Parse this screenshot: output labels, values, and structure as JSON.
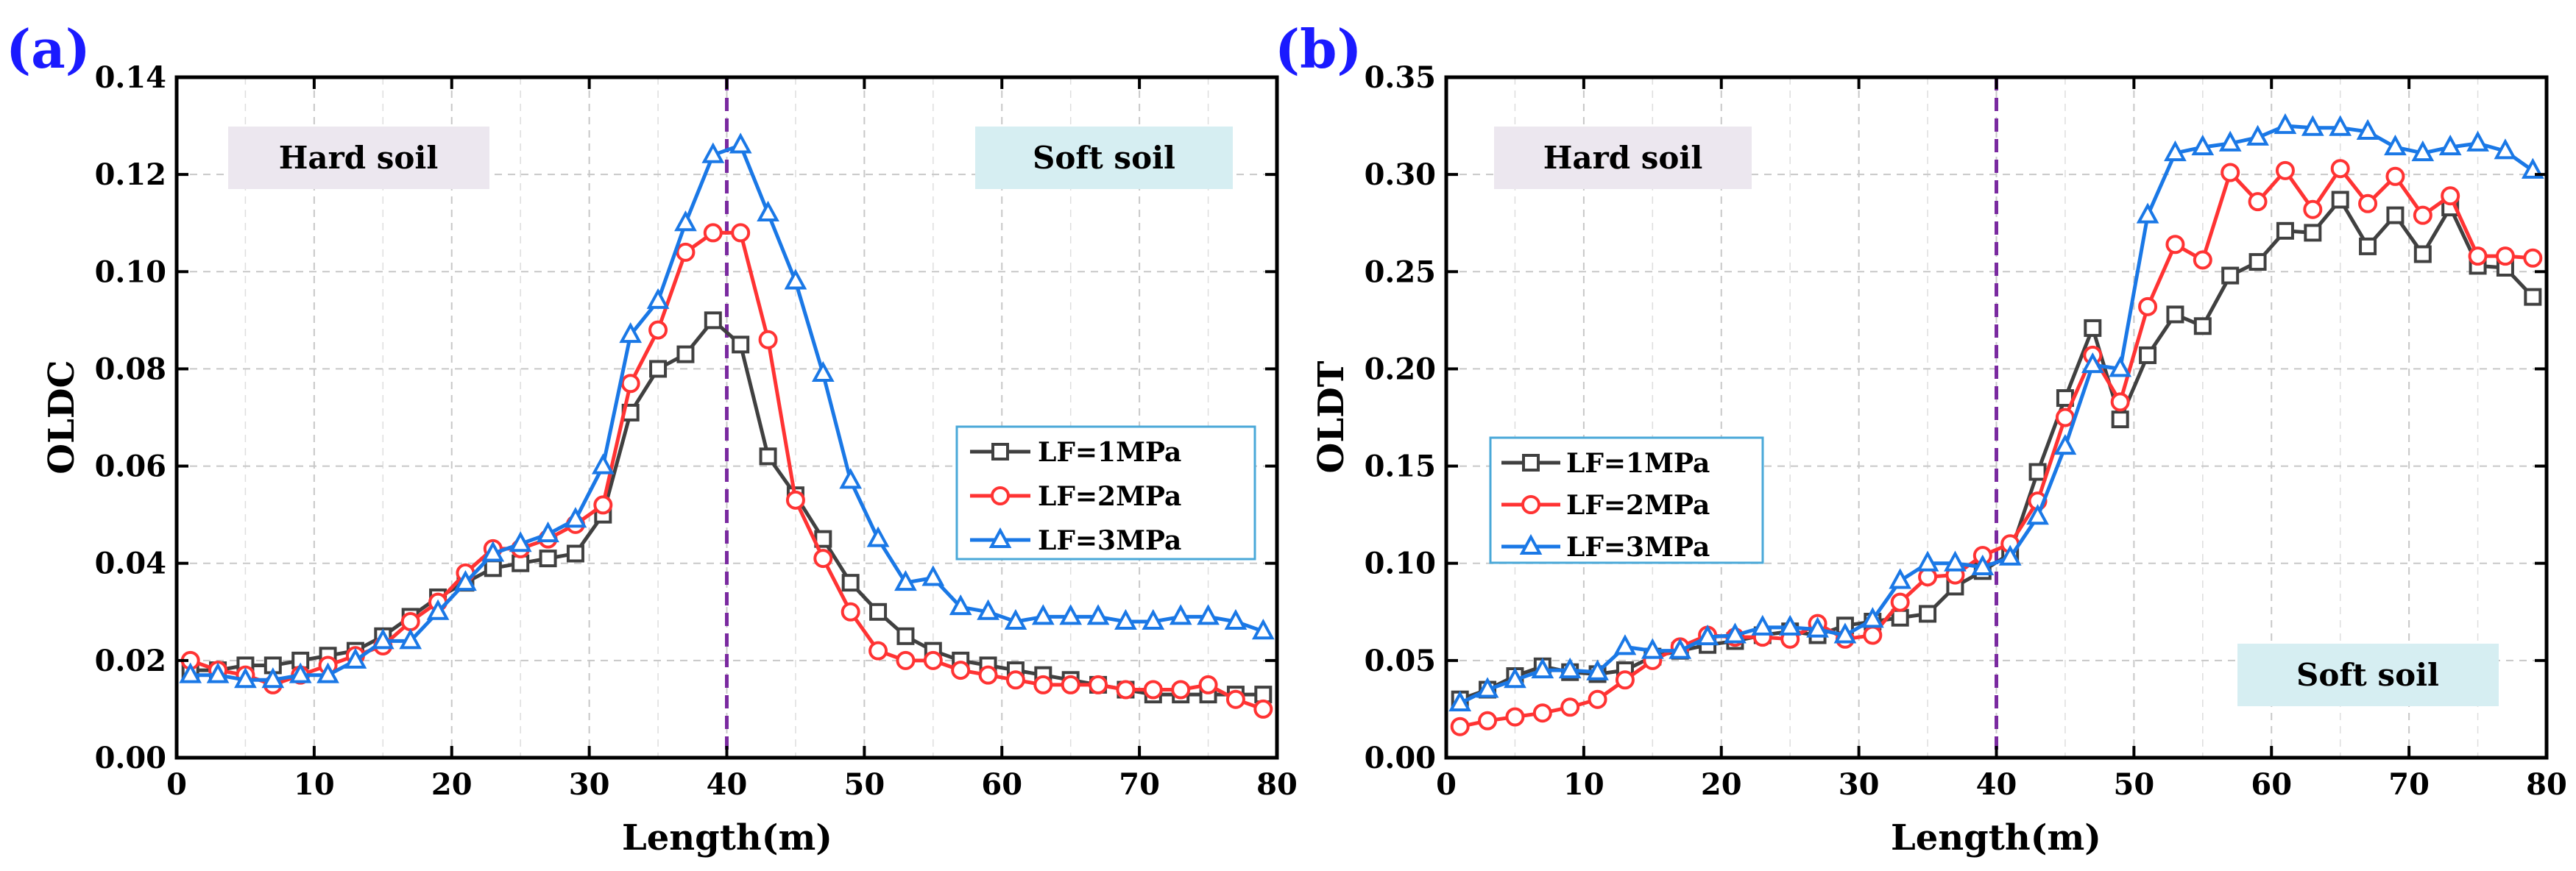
{
  "chart_data": [
    {
      "type": "line",
      "panel_label": "(a)",
      "xlabel": "Length(m)",
      "ylabel": "OLDC",
      "xlim": [
        0,
        80
      ],
      "ylim": [
        0,
        0.14
      ],
      "xticks": [
        "0",
        "10",
        "20",
        "30",
        "40",
        "50",
        "60",
        "70",
        "80"
      ],
      "yticks": [
        "0.00",
        "0.02",
        "0.04",
        "0.06",
        "0.08",
        "0.10",
        "0.12",
        "0.14"
      ],
      "grid": true,
      "vline_x": 40,
      "legend_position": "right",
      "x": [
        1,
        3,
        5,
        7,
        9,
        11,
        13,
        15,
        17,
        19,
        21,
        23,
        25,
        27,
        29,
        31,
        33,
        35,
        37,
        39,
        41,
        43,
        45,
        47,
        49,
        51,
        53,
        55,
        57,
        59,
        61,
        63,
        65,
        67,
        69,
        71,
        73,
        75,
        77,
        79
      ],
      "series": [
        {
          "name": "LF=1MPa",
          "color": "#404040",
          "marker": "square",
          "values": [
            0.018,
            0.018,
            0.019,
            0.019,
            0.02,
            0.021,
            0.022,
            0.025,
            0.029,
            0.033,
            0.036,
            0.039,
            0.04,
            0.041,
            0.042,
            0.05,
            0.071,
            0.08,
            0.083,
            0.09,
            0.085,
            0.062,
            0.054,
            0.045,
            0.036,
            0.03,
            0.025,
            0.022,
            0.02,
            0.019,
            0.018,
            0.017,
            0.016,
            0.015,
            0.014,
            0.013,
            0.013,
            0.013,
            0.013,
            0.013
          ]
        },
        {
          "name": "LF=2MPa",
          "color": "#ff3333",
          "marker": "circle",
          "values": [
            0.02,
            0.018,
            0.017,
            0.015,
            0.017,
            0.019,
            0.021,
            0.023,
            0.028,
            0.032,
            0.038,
            0.043,
            0.043,
            0.045,
            0.048,
            0.052,
            0.077,
            0.088,
            0.104,
            0.108,
            0.108,
            0.086,
            0.053,
            0.041,
            0.03,
            0.022,
            0.02,
            0.02,
            0.018,
            0.017,
            0.016,
            0.015,
            0.015,
            0.015,
            0.014,
            0.014,
            0.014,
            0.015,
            0.012,
            0.01
          ]
        },
        {
          "name": "LF=3MPa",
          "color": "#1a78e6",
          "marker": "triangle",
          "values": [
            0.017,
            0.017,
            0.016,
            0.016,
            0.017,
            0.017,
            0.02,
            0.024,
            0.024,
            0.03,
            0.036,
            0.042,
            0.044,
            0.046,
            0.049,
            0.06,
            0.087,
            0.094,
            0.11,
            0.124,
            0.126,
            0.112,
            0.098,
            0.079,
            0.057,
            0.045,
            0.036,
            0.037,
            0.031,
            0.03,
            0.028,
            0.029,
            0.029,
            0.029,
            0.028,
            0.028,
            0.029,
            0.029,
            0.028,
            0.026
          ]
        }
      ],
      "annotations": [
        {
          "id": "hard",
          "text": "Hard soil",
          "fill": "#ece7ef"
        },
        {
          "id": "soft",
          "text": "Soft soil",
          "fill": "#d6eef2"
        }
      ]
    },
    {
      "type": "line",
      "panel_label": "(b)",
      "xlabel": "Length(m)",
      "ylabel": "OLDT",
      "xlim": [
        0,
        80
      ],
      "ylim": [
        0,
        0.35
      ],
      "xticks": [
        "0",
        "10",
        "20",
        "30",
        "40",
        "50",
        "60",
        "70",
        "80"
      ],
      "yticks": [
        "0.00",
        "0.05",
        "0.10",
        "0.15",
        "0.20",
        "0.25",
        "0.30",
        "0.35"
      ],
      "grid": true,
      "vline_x": 40,
      "legend_position": "left",
      "x": [
        1,
        3,
        5,
        7,
        9,
        11,
        13,
        15,
        17,
        19,
        21,
        23,
        25,
        27,
        29,
        31,
        33,
        35,
        37,
        39,
        41,
        43,
        45,
        47,
        49,
        51,
        53,
        55,
        57,
        59,
        61,
        63,
        65,
        67,
        69,
        71,
        73,
        75,
        77,
        79
      ],
      "series": [
        {
          "name": "LF=1MPa",
          "color": "#404040",
          "marker": "square",
          "values": [
            0.03,
            0.035,
            0.042,
            0.047,
            0.044,
            0.043,
            0.045,
            0.052,
            0.055,
            0.058,
            0.06,
            0.063,
            0.065,
            0.063,
            0.068,
            0.07,
            0.072,
            0.074,
            0.088,
            0.096,
            0.105,
            0.147,
            0.185,
            0.221,
            0.174,
            0.207,
            0.228,
            0.222,
            0.248,
            0.255,
            0.271,
            0.27,
            0.287,
            0.263,
            0.279,
            0.259,
            0.283,
            0.253,
            0.252,
            0.237
          ]
        },
        {
          "name": "LF=2MPa",
          "color": "#ff3333",
          "marker": "circle",
          "values": [
            0.016,
            0.019,
            0.021,
            0.023,
            0.026,
            0.03,
            0.04,
            0.05,
            0.057,
            0.063,
            0.062,
            0.062,
            0.061,
            0.069,
            0.061,
            0.063,
            0.08,
            0.093,
            0.094,
            0.104,
            0.11,
            0.132,
            0.175,
            0.207,
            0.183,
            0.232,
            0.264,
            0.256,
            0.301,
            0.286,
            0.302,
            0.282,
            0.303,
            0.285,
            0.299,
            0.279,
            0.289,
            0.258,
            0.258,
            0.257
          ]
        },
        {
          "name": "LF=3MPa",
          "color": "#1a78e6",
          "marker": "triangle",
          "values": [
            0.028,
            0.035,
            0.04,
            0.045,
            0.045,
            0.044,
            0.057,
            0.055,
            0.055,
            0.062,
            0.063,
            0.067,
            0.067,
            0.066,
            0.063,
            0.071,
            0.091,
            0.1,
            0.1,
            0.098,
            0.103,
            0.124,
            0.16,
            0.202,
            0.2,
            0.279,
            0.311,
            0.314,
            0.316,
            0.319,
            0.325,
            0.324,
            0.324,
            0.322,
            0.314,
            0.311,
            0.314,
            0.316,
            0.312,
            0.302
          ]
        }
      ],
      "annotations": [
        {
          "id": "hard",
          "text": "Hard soil",
          "fill": "#ece7ef"
        },
        {
          "id": "soft",
          "text": "Soft soil",
          "fill": "#d6eef2"
        }
      ]
    }
  ]
}
